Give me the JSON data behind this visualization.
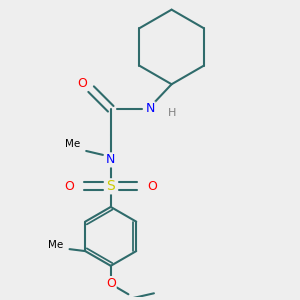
{
  "background_color": "#eeeeee",
  "atom_colors": {
    "C": "#000000",
    "N": "#0000ff",
    "O": "#ff0000",
    "S": "#cccc00",
    "H": "#808080"
  },
  "bond_color": "#2f6b6b",
  "bond_width": 1.5,
  "figsize": [
    3.0,
    3.0
  ],
  "dpi": 100,
  "xlim": [
    0,
    3.0
  ],
  "ylim": [
    0,
    3.0
  ]
}
